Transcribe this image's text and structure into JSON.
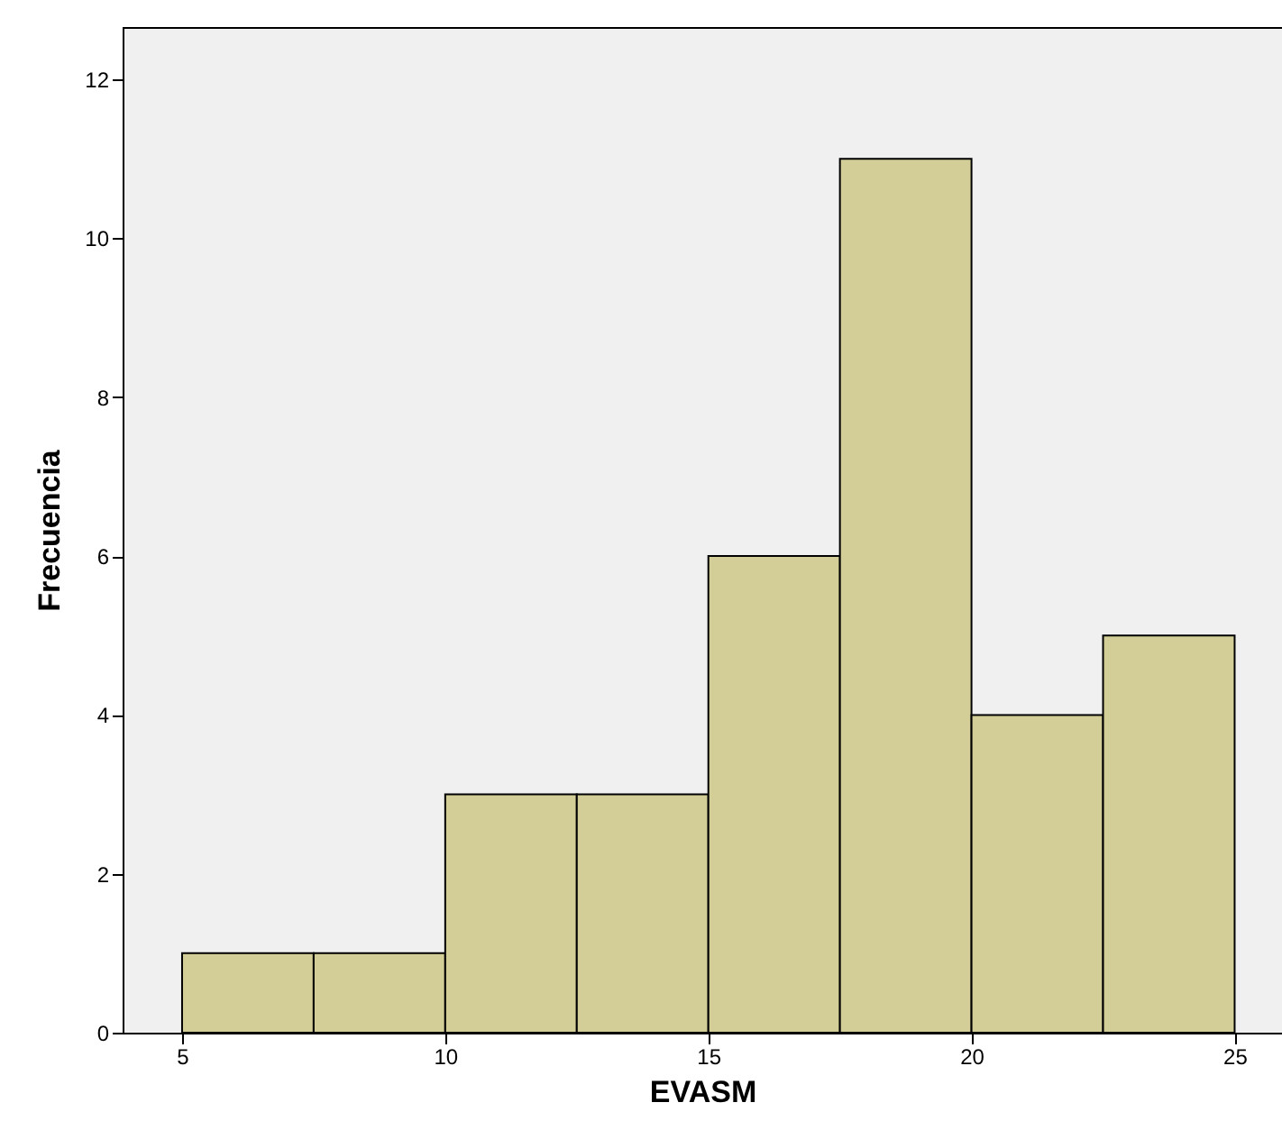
{
  "chart_data": {
    "type": "histogram",
    "xlabel": "EVASM",
    "ylabel": "Frecuencia",
    "bins": [
      5,
      7.5,
      10,
      12.5,
      15,
      17.5,
      20,
      22.5,
      25
    ],
    "values": [
      1,
      1,
      3,
      3,
      6,
      11,
      4,
      5
    ],
    "color": "#d3ce97",
    "xlim": [
      3.87,
      25.9
    ],
    "xticks": [
      5,
      10,
      15,
      20,
      25
    ],
    "ylim": [
      0,
      12.66
    ],
    "yticks": [
      0,
      2,
      4,
      6,
      8,
      10,
      12
    ],
    "grid": false
  }
}
